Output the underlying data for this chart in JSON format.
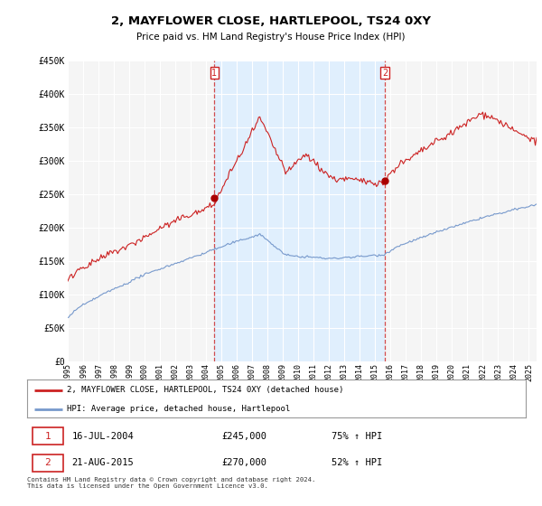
{
  "title": "2, MAYFLOWER CLOSE, HARTLEPOOL, TS24 0XY",
  "subtitle": "Price paid vs. HM Land Registry's House Price Index (HPI)",
  "ylim": [
    0,
    450000
  ],
  "yticks": [
    0,
    50000,
    100000,
    150000,
    200000,
    250000,
    300000,
    350000,
    400000,
    450000
  ],
  "ytick_labels": [
    "£0",
    "£50K",
    "£100K",
    "£150K",
    "£200K",
    "£250K",
    "£300K",
    "£350K",
    "£400K",
    "£450K"
  ],
  "red_line_color": "#cc2222",
  "blue_line_color": "#7799cc",
  "shade_color": "#ddeeff",
  "marker1_date": 2004.54,
  "marker1_price": 245000,
  "marker2_date": 2015.64,
  "marker2_price": 270000,
  "legend_red": "2, MAYFLOWER CLOSE, HARTLEPOOL, TS24 0XY (detached house)",
  "legend_blue": "HPI: Average price, detached house, Hartlepool",
  "footer": "Contains HM Land Registry data © Crown copyright and database right 2024.\nThis data is licensed under the Open Government Licence v3.0.",
  "background_color": "#ffffff",
  "plot_bg_color": "#f5f5f5",
  "grid_color": "#ffffff",
  "xstart": 1995.0,
  "xend": 2025.5
}
